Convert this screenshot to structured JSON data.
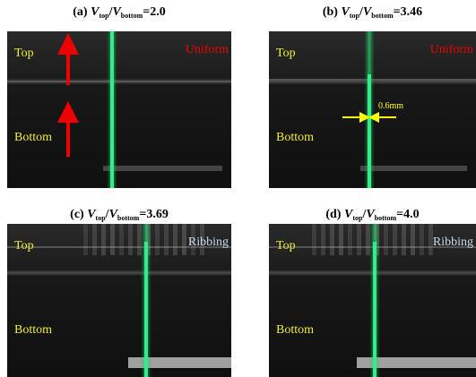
{
  "symbol": "V",
  "sub_top": "top",
  "sub_bottom": "bottom",
  "slash": "/",
  "equals": "=",
  "panels": [
    {
      "label": "(a)",
      "ratio": "2.0",
      "top": "Top",
      "bottom": "Bottom",
      "mode": "Uniform"
    },
    {
      "label": "(b)",
      "ratio": "3.46",
      "top": "Top",
      "bottom": "Bottom",
      "mode": "Uniform",
      "measure": "0.6mm"
    },
    {
      "label": "(c)",
      "ratio": "3.69",
      "top": "Top",
      "bottom": "Bottom",
      "mode": "Ribbing"
    },
    {
      "label": "(d)",
      "ratio": "4.0",
      "top": "Top",
      "bottom": "Bottom",
      "mode": "Ribbing"
    }
  ]
}
